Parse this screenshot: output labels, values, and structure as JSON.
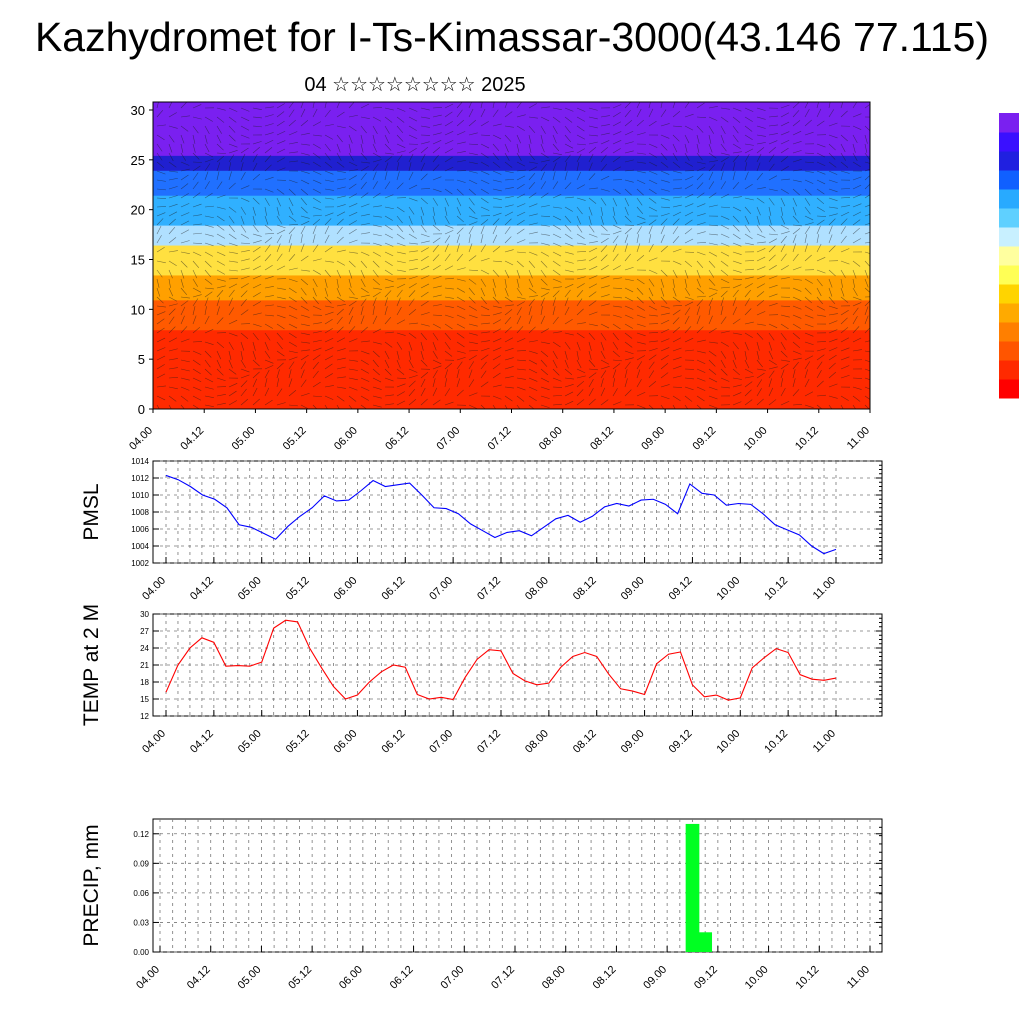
{
  "title": "Kazhydromet for I-Ts-Kimassar-3000(43.146 77.115)",
  "subtitle": "04 ☆☆☆☆☆☆☆☆ 2025",
  "time_ticks": [
    "04.00",
    "04.12",
    "05.00",
    "05.12",
    "06.00",
    "06.12",
    "07.00",
    "07.12",
    "08.00",
    "08.12",
    "09.00",
    "09.12",
    "10.00",
    "10.12",
    "11.00"
  ],
  "colorbar_colors": [
    "#ff0000",
    "#ff2a00",
    "#ff5500",
    "#ff7f00",
    "#ffaa00",
    "#ffd400",
    "#ffff55",
    "#ffff9f",
    "#c8f0ff",
    "#5fd0ff",
    "#28aaff",
    "#1060ff",
    "#2020e0",
    "#3a10ff",
    "#7a20f0"
  ],
  "chart_data": [
    {
      "type": "heatmap",
      "name": "cross-section",
      "ylim": [
        0,
        30
      ],
      "yticks": [
        "0",
        "5",
        "10",
        "15",
        "20",
        "25",
        "30"
      ],
      "xticks_ref": "time_ticks",
      "bands": [
        {
          "from": 0,
          "to": 8,
          "color": "#ff2a00"
        },
        {
          "from": 8,
          "to": 11,
          "color": "#ff5a00"
        },
        {
          "from": 11,
          "to": 13.5,
          "color": "#ffa000"
        },
        {
          "from": 13.5,
          "to": 16.5,
          "color": "#ffe040"
        },
        {
          "from": 16.5,
          "to": 18.5,
          "color": "#b0e0ff"
        },
        {
          "from": 18.5,
          "to": 21.5,
          "color": "#30b0ff"
        },
        {
          "from": 21.5,
          "to": 24,
          "color": "#2070ff"
        },
        {
          "from": 24,
          "to": 25.5,
          "color": "#2020d0"
        },
        {
          "from": 25.5,
          "to": 30.8,
          "color": "#7a20f0"
        }
      ]
    },
    {
      "type": "line",
      "name": "pmsl",
      "ylabel": "PMSL",
      "ylim": [
        1002,
        1014
      ],
      "yticks": [
        "1002",
        "1004",
        "1006",
        "1008",
        "1010",
        "1012",
        "1014"
      ],
      "color": "#0000ff",
      "values": [
        1012.3,
        1011.8,
        1011.0,
        1010.0,
        1009.5,
        1008.5,
        1006.5,
        1006.2,
        1005.5,
        1004.8,
        1006.3,
        1007.5,
        1008.5,
        1009.9,
        1009.3,
        1009.4,
        1010.5,
        1011.7,
        1011.0,
        1011.2,
        1011.4,
        1010.0,
        1008.5,
        1008.4,
        1007.8,
        1006.6,
        1005.8,
        1005.0,
        1005.6,
        1005.8,
        1005.2,
        1006.2,
        1007.2,
        1007.6,
        1006.8,
        1007.5,
        1008.6,
        1009.0,
        1008.7,
        1009.4,
        1009.5,
        1008.9,
        1007.8,
        1011.3,
        1010.2,
        1010.0,
        1008.8,
        1009.0,
        1008.9,
        1007.8,
        1006.5,
        1005.9,
        1005.3,
        1004.0,
        1003.1,
        1003.6
      ]
    },
    {
      "type": "line",
      "name": "temp",
      "ylabel": "TEMP at 2 M",
      "ylim": [
        12,
        30
      ],
      "yticks": [
        "12",
        "15",
        "18",
        "21",
        "24",
        "27",
        "30"
      ],
      "color": "#ff0000",
      "values": [
        16.2,
        21.0,
        24.0,
        25.8,
        25.0,
        20.8,
        20.9,
        20.8,
        21.5,
        27.5,
        28.9,
        28.6,
        24.0,
        20.5,
        17.2,
        15.0,
        15.7,
        18.0,
        19.8,
        21.0,
        20.6,
        15.8,
        15.0,
        15.3,
        14.9,
        18.8,
        22.0,
        23.7,
        23.5,
        19.5,
        18.2,
        17.5,
        17.8,
        20.6,
        22.5,
        23.2,
        22.5,
        19.4,
        16.8,
        16.4,
        15.8,
        21.2,
        22.9,
        23.3,
        17.5,
        15.4,
        15.7,
        14.8,
        15.2,
        20.5,
        22.3,
        23.9,
        23.2,
        19.3,
        18.5,
        18.3,
        18.7
      ]
    },
    {
      "type": "bar",
      "name": "precip",
      "ylabel": "PRECIP, mm",
      "ylim": [
        0,
        0.135
      ],
      "yticks": [
        "0.00",
        "0.03",
        "0.06",
        "0.09",
        "0.12"
      ],
      "color": "#00ff22",
      "bars": [
        {
          "x": 9.25,
          "value": 0.13
        },
        {
          "x": 9.375,
          "value": 0.02
        }
      ]
    }
  ]
}
